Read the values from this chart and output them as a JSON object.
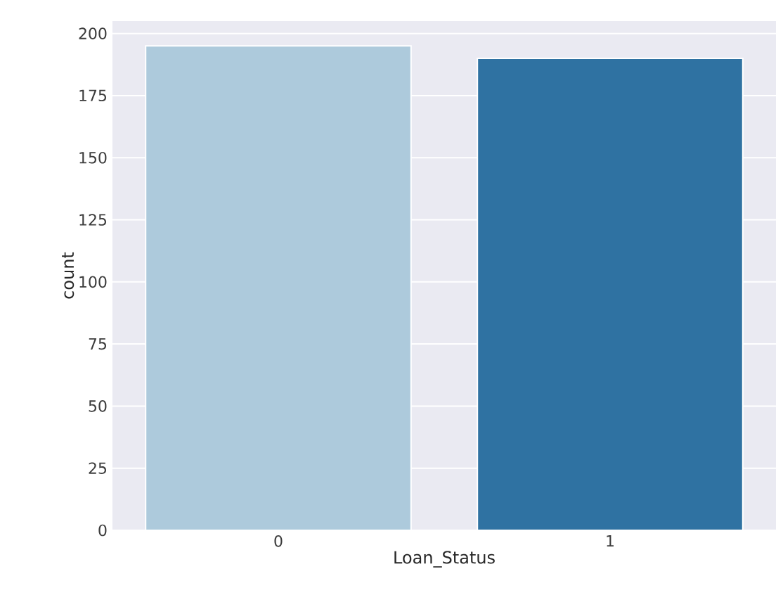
{
  "chart_data": {
    "type": "bar",
    "xlabel": "Loan_Status",
    "ylabel": "count",
    "categories": [
      "0",
      "1"
    ],
    "values": [
      195,
      190
    ],
    "colors": [
      "#adcadc",
      "#2f72a2"
    ],
    "ylim": [
      0,
      205
    ],
    "yticks": [
      0,
      25,
      50,
      75,
      100,
      125,
      150,
      175,
      200
    ],
    "grid": "y"
  }
}
